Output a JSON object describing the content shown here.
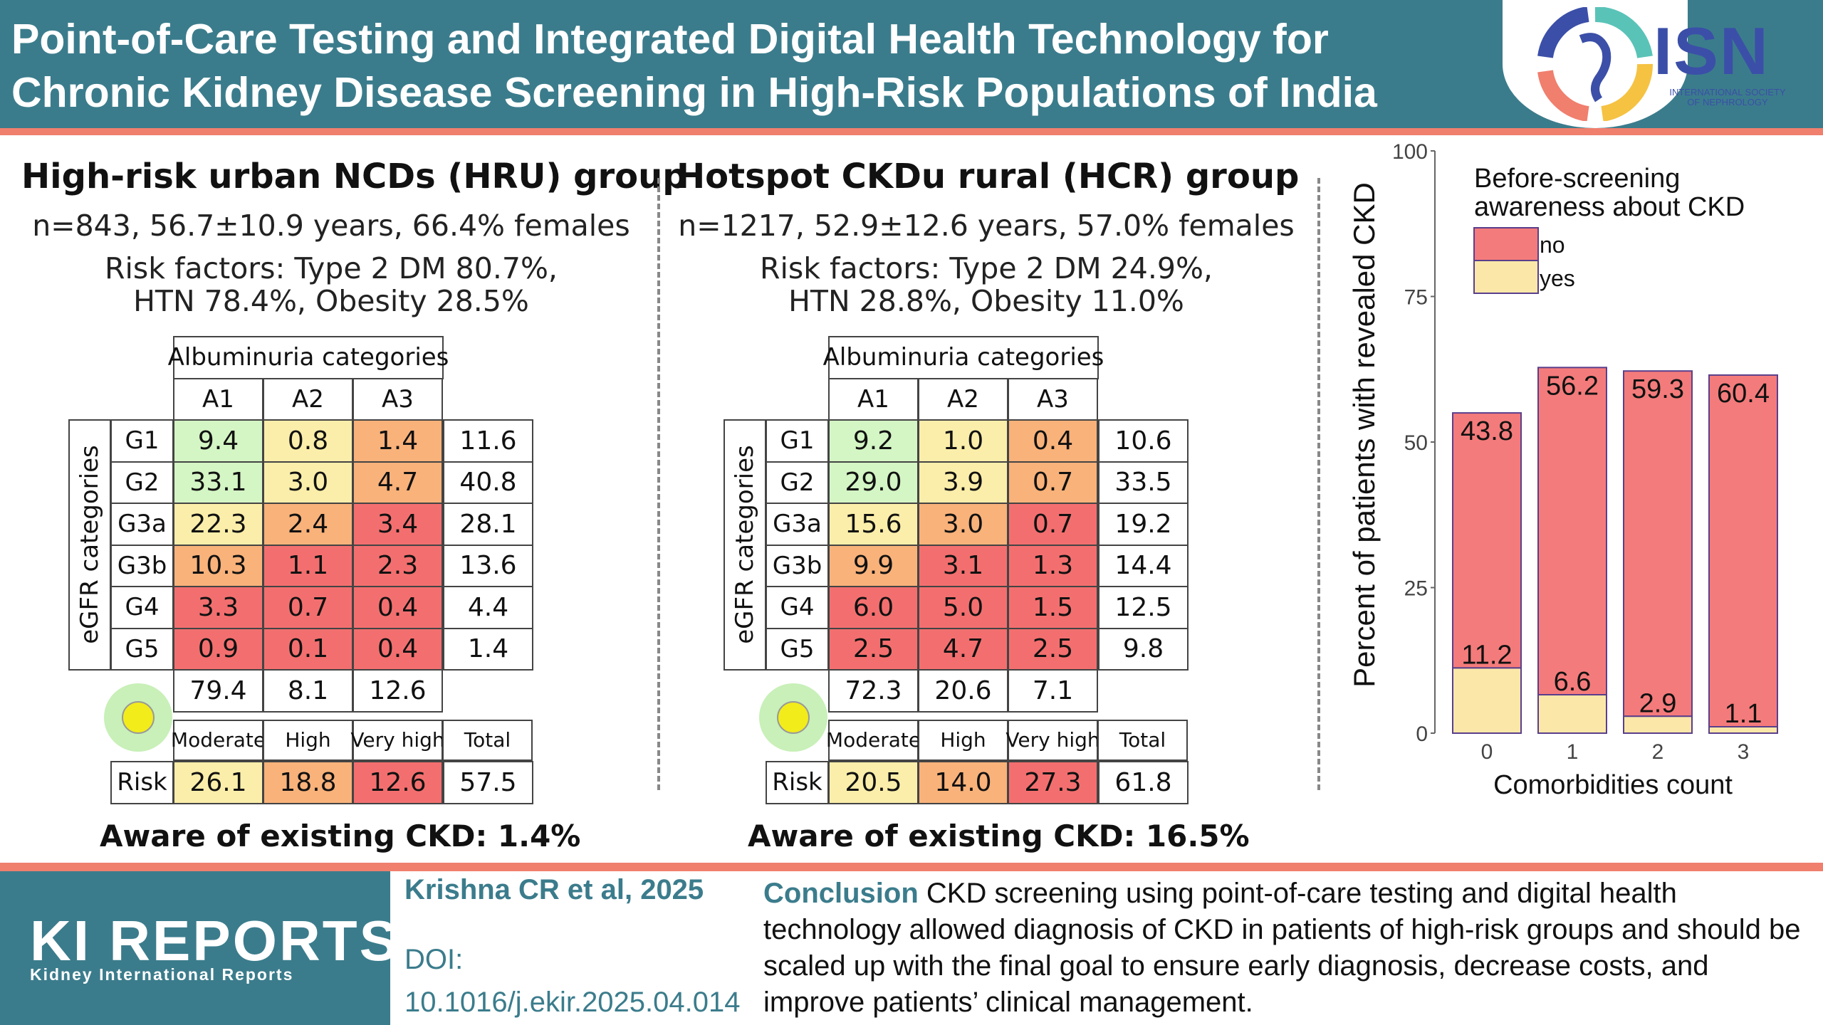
{
  "header": {
    "title_line1": "Point-of-Care Testing and Integrated Digital Health Technology for",
    "title_line2": "Chronic Kidney Disease Screening in High-Risk Populations of India",
    "logo_text": "ISN",
    "logo_sub_line1": "INTERNATIONAL SOCIETY",
    "logo_sub_line2": "OF NEPHROLOGY"
  },
  "panels": [
    {
      "title": "High-risk urban NCDs (HRU) group",
      "sub1": "n=843, 56.7±10.9 years, 66.4% females",
      "sub2": "Risk factors: Type 2 DM 80.7%,",
      "sub3": "HTN 78.4%, Obesity 28.5%",
      "alb_header": "Albuminuria categories",
      "alb_cols": [
        "A1",
        "A2",
        "A3"
      ],
      "egfr_label": "eGFR categories",
      "rows": [
        {
          "g": "G1",
          "a1": "9.4",
          "a2": "0.8",
          "a3": "1.4",
          "tot": "11.6"
        },
        {
          "g": "G2",
          "a1": "33.1",
          "a2": "3.0",
          "a3": "4.7",
          "tot": "40.8"
        },
        {
          "g": "G3a",
          "a1": "22.3",
          "a2": "2.4",
          "a3": "3.4",
          "tot": "28.1"
        },
        {
          "g": "G3b",
          "a1": "10.3",
          "a2": "1.1",
          "a3": "2.3",
          "tot": "13.6"
        },
        {
          "g": "G4",
          "a1": "3.3",
          "a2": "0.7",
          "a3": "0.4",
          "tot": "4.4"
        },
        {
          "g": "G5",
          "a1": "0.9",
          "a2": "0.1",
          "a3": "0.4",
          "tot": "1.4"
        }
      ],
      "col_totals": [
        "79.4",
        "8.1",
        "12.6"
      ],
      "risk_headers": [
        "Moderate",
        "High",
        "Very high",
        "Total"
      ],
      "risk_label": "Risk",
      "risk_values": [
        "26.1",
        "18.8",
        "12.6",
        "57.5"
      ],
      "aware": "Aware of existing CKD: 1.4%"
    },
    {
      "title": "Hotspot CKDu rural (HCR) group",
      "sub1": "n=1217, 52.9±12.6 years, 57.0% females",
      "sub2": "Risk factors: Type 2 DM 24.9%,",
      "sub3": "HTN 28.8%, Obesity 11.0%",
      "alb_header": "Albuminuria categories",
      "alb_cols": [
        "A1",
        "A2",
        "A3"
      ],
      "egfr_label": "eGFR categories",
      "rows": [
        {
          "g": "G1",
          "a1": "9.2",
          "a2": "1.0",
          "a3": "0.4",
          "tot": "10.6"
        },
        {
          "g": "G2",
          "a1": "29.0",
          "a2": "3.9",
          "a3": "0.7",
          "tot": "33.5"
        },
        {
          "g": "G3a",
          "a1": "15.6",
          "a2": "3.0",
          "a3": "0.7",
          "tot": "19.2"
        },
        {
          "g": "G3b",
          "a1": "9.9",
          "a2": "3.1",
          "a3": "1.3",
          "tot": "14.4"
        },
        {
          "g": "G4",
          "a1": "6.0",
          "a2": "5.0",
          "a3": "1.5",
          "tot": "12.5"
        },
        {
          "g": "G5",
          "a1": "2.5",
          "a2": "4.7",
          "a3": "2.5",
          "tot": "9.8"
        }
      ],
      "col_totals": [
        "72.3",
        "20.6",
        "7.1"
      ],
      "risk_headers": [
        "Moderate",
        "High",
        "Very high",
        "Total"
      ],
      "risk_label": "Risk",
      "risk_values": [
        "20.5",
        "14.0",
        "27.3",
        "61.8"
      ],
      "aware": "Aware of existing CKD: 16.5%"
    }
  ],
  "colors": {
    "header_bg": "#3b7c8c",
    "accent": "#f07f6e",
    "low_risk": "#d4f5c4",
    "moderate": "#fbeeaa",
    "high": "#f8b27a",
    "very_high": "#f36f6f",
    "bar_no": "#f47b7b",
    "bar_yes": "#fbe8a8",
    "bar_outline": "#5a3f8c"
  },
  "chart_data": {
    "type": "bar",
    "stacked": true,
    "categories": [
      "0",
      "1",
      "2",
      "3"
    ],
    "series": [
      {
        "name": "yes",
        "values": [
          11.2,
          6.6,
          2.9,
          1.1
        ]
      },
      {
        "name": "no",
        "values": [
          43.8,
          56.2,
          59.3,
          60.4
        ]
      }
    ],
    "data_labels_yes": [
      "11.2",
      "6.6",
      "2.9",
      "1.1"
    ],
    "data_labels_no": [
      "43.8",
      "56.2",
      "59.3",
      "60.4"
    ],
    "xlabel": "Comorbidities count",
    "ylabel": "Percent of patients with revealed CKD",
    "ylim": [
      0,
      100
    ],
    "yticks": [
      "0",
      "25",
      "50",
      "75",
      "100"
    ],
    "legend_title_line1": "Before-screening",
    "legend_title_line2": "awareness about CKD",
    "legend_items": [
      "no",
      "yes"
    ],
    "legend_position": "top-right"
  },
  "footer": {
    "journal": "KI REPORTS",
    "journal_sub": "Kidney International Reports",
    "citation": "Krishna CR et al, 2025",
    "doi_label": "DOI:",
    "doi_value": "10.1016/j.ekir.2025.04.014",
    "conclusion_label": "Conclusion",
    "conclusion_text": " CKD screening using point-of-care testing and digital health technology allowed diagnosis of CKD in patients of high-risk groups and should be scaled up with the final goal to ensure early diagnosis, decrease costs, and improve patients’ clinical management."
  }
}
